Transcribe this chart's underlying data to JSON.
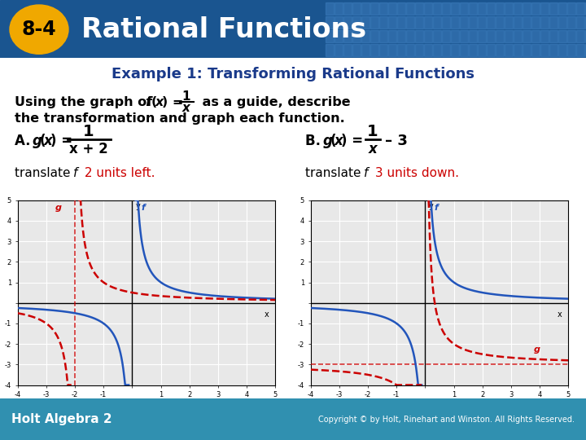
{
  "header_bg": "#1a5590",
  "header_text": "Rational Functions",
  "header_badge": "8-4",
  "header_badge_bg": "#f0a800",
  "example_title": "Example 1: Transforming Rational Functions",
  "body_bg": "#ffffff",
  "title_color": "#1a3a8a",
  "text_color": "#000000",
  "red_color": "#cc0000",
  "blue_color": "#2255bb",
  "footer_bg": "#3090b0",
  "footer_left": "Holt Algebra 2",
  "footer_right": "Copyright © by Holt, Rinehart and Winston. All Rights Reserved.",
  "grid_color": "#cccccc",
  "graph_bg": "#e8e8e8"
}
